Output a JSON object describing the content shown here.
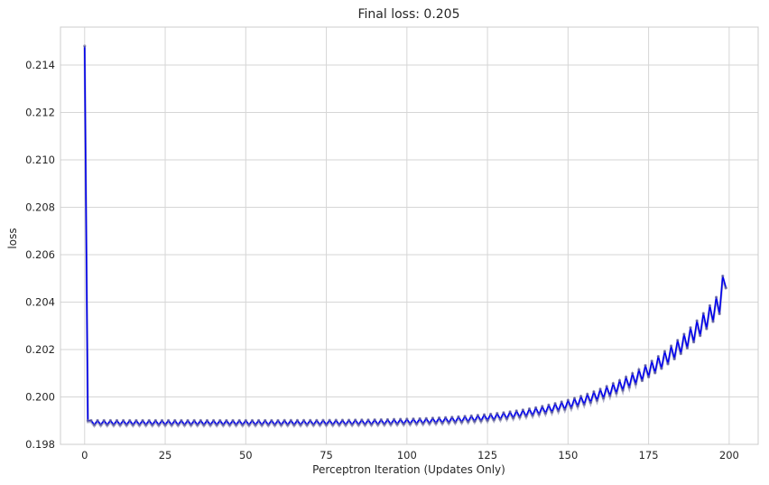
{
  "chart_data": {
    "type": "line",
    "title": "Final loss: 0.205",
    "xlabel": "Perceptron Iteration (Updates Only)",
    "ylabel": "loss",
    "xlim": [
      -7.5,
      209
    ],
    "ylim": [
      0.198,
      0.2156
    ],
    "xticks": [
      0,
      25,
      50,
      75,
      100,
      125,
      150,
      175,
      200
    ],
    "xtick_labels": [
      "0",
      "25",
      "50",
      "75",
      "100",
      "125",
      "150",
      "175",
      "200"
    ],
    "yticks": [
      0.198,
      0.2,
      0.202,
      0.204,
      0.206,
      0.208,
      0.21,
      0.212,
      0.214
    ],
    "ytick_labels": [
      "0.198",
      "0.200",
      "0.202",
      "0.204",
      "0.206",
      "0.208",
      "0.210",
      "0.212",
      "0.214"
    ],
    "grid": true,
    "series": [
      {
        "color": "#0000ee",
        "marker_color": "#6a6a9a",
        "n_points": 200,
        "first_value": 0.2148,
        "second_value": 0.199,
        "baseline_min": 0.19885,
        "oscillation_amplitude_start": 0.0002,
        "final_high": 0.2051,
        "final_value": 0.2046
      }
    ]
  }
}
